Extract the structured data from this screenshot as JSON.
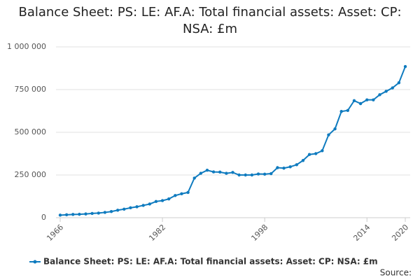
{
  "chart_data": {
    "type": "line",
    "title": "Balance Sheet: PS: LE: AF.A: Total financial assets: Asset: CP: NSA: £m",
    "source": "Source:",
    "x": [
      1966,
      1967,
      1968,
      1969,
      1970,
      1971,
      1972,
      1973,
      1974,
      1975,
      1976,
      1977,
      1978,
      1979,
      1980,
      1981,
      1982,
      1983,
      1984,
      1985,
      1986,
      1987,
      1988,
      1989,
      1990,
      1991,
      1992,
      1993,
      1994,
      1995,
      1996,
      1997,
      1998,
      1999,
      2000,
      2001,
      2002,
      2003,
      2004,
      2005,
      2006,
      2007,
      2008,
      2009,
      2010,
      2011,
      2012,
      2013,
      2014,
      2015,
      2016,
      2017,
      2018,
      2019,
      2020
    ],
    "series": [
      {
        "name": "Balance Sheet: PS: LE: AF.A: Total financial assets: Asset: CP: NSA: £m",
        "color": "#0f7bbf",
        "values": [
          15000,
          17000,
          19000,
          20000,
          22000,
          25000,
          27000,
          31000,
          36000,
          44000,
          50000,
          58000,
          64000,
          72000,
          80000,
          95000,
          100000,
          110000,
          130000,
          140000,
          148000,
          232000,
          260000,
          278000,
          268000,
          267000,
          260000,
          265000,
          250000,
          250000,
          250000,
          256000,
          255000,
          258000,
          293000,
          290000,
          298000,
          310000,
          335000,
          370000,
          375000,
          392000,
          485000,
          520000,
          622000,
          628000,
          685000,
          668000,
          690000,
          690000,
          720000,
          740000,
          760000,
          790000,
          885000
        ]
      }
    ],
    "xlim": [
      1966,
      2020
    ],
    "xticks": [
      1966,
      1982,
      1998,
      2014,
      2020
    ],
    "ylim": [
      0,
      1000000
    ],
    "yticks": [
      0,
      {
        "value": 250000,
        "label": "250 000"
      },
      {
        "value": 500000,
        "label": "500 000"
      },
      {
        "value": 750000,
        "label": "750 000"
      },
      {
        "value": 1000000,
        "label": "1 000 000"
      }
    ],
    "grid": true
  }
}
